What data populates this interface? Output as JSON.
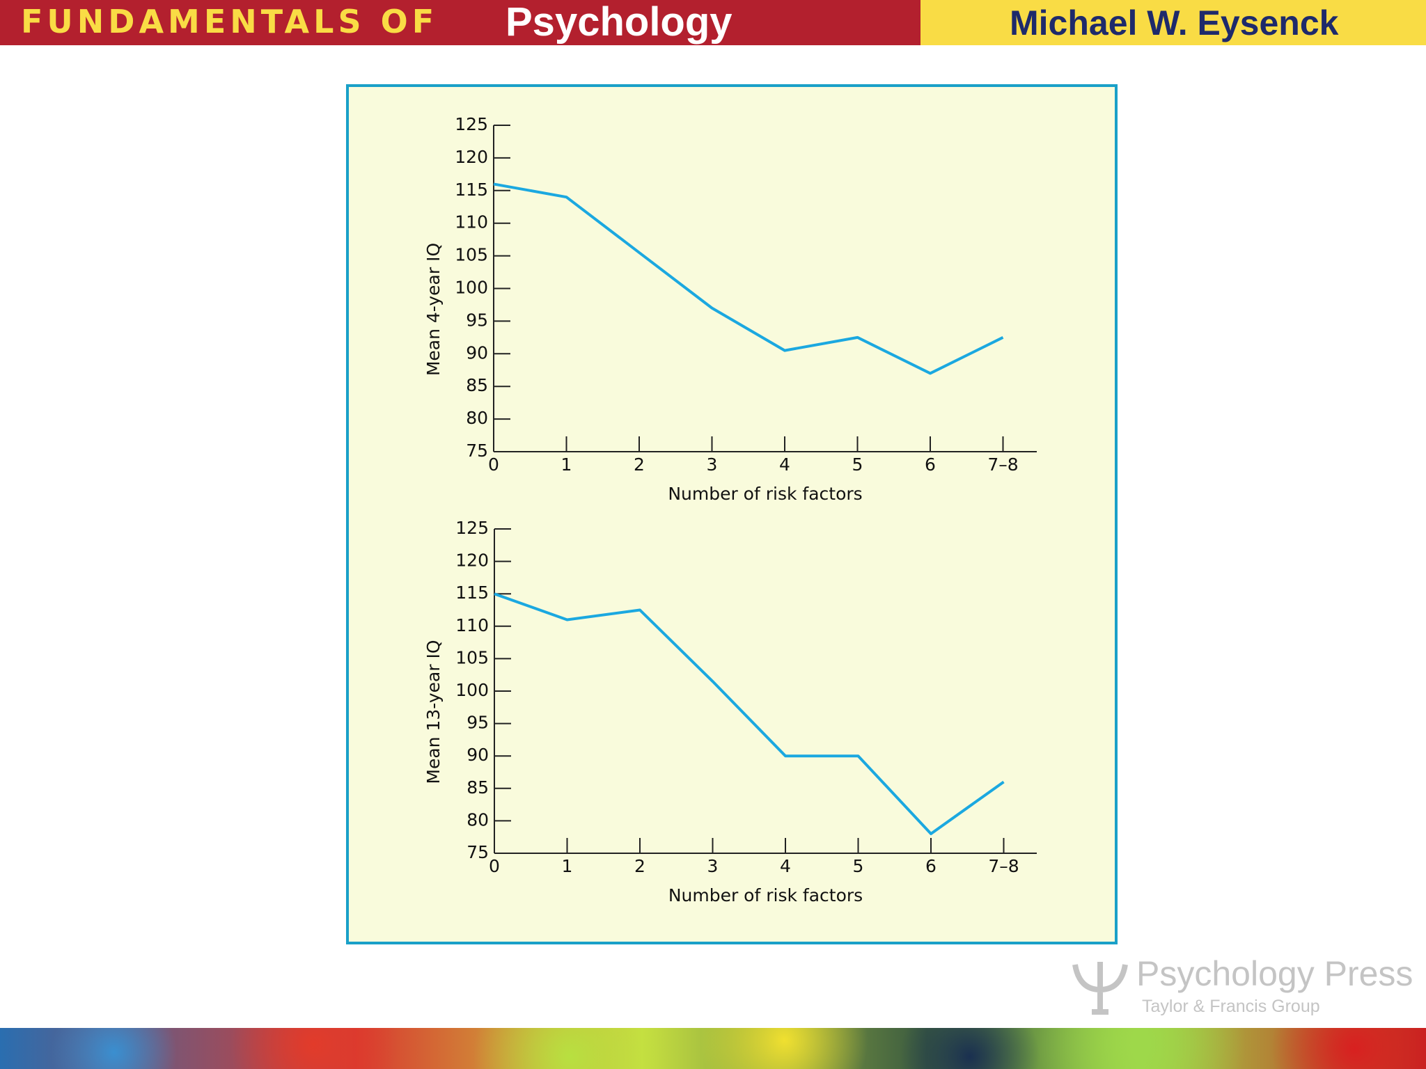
{
  "header": {
    "series_caps": "FUNDAMENTALS OF",
    "series_title": "Psychology",
    "author": "Michael W. Eysenck"
  },
  "footer": {
    "publisher": "Psychology Press",
    "group": "Taylor & Francis Group"
  },
  "chart_data": [
    {
      "type": "line",
      "x_label": "Number of risk factors",
      "y_label": "Mean 4-year IQ",
      "categories": [
        "0",
        "1",
        "2",
        "3",
        "4",
        "5",
        "6",
        "7–8"
      ],
      "values": [
        116,
        114,
        105.5,
        97,
        90.5,
        92.5,
        87,
        92.5
      ],
      "color": "#1ba8e0",
      "ylim": [
        75,
        125
      ],
      "yticks": [
        75,
        80,
        85,
        90,
        95,
        100,
        105,
        110,
        115,
        120,
        125
      ]
    },
    {
      "type": "line",
      "x_label": "Number of risk factors",
      "y_label": "Mean 13-year IQ",
      "categories": [
        "0",
        "1",
        "2",
        "3",
        "4",
        "5",
        "6",
        "7–8"
      ],
      "values": [
        115,
        111,
        112.5,
        101.5,
        90,
        90,
        78,
        86
      ],
      "color": "#1ba8e0",
      "ylim": [
        75,
        125
      ],
      "yticks": [
        75,
        80,
        85,
        90,
        95,
        100,
        105,
        110,
        115,
        120,
        125
      ]
    }
  ]
}
